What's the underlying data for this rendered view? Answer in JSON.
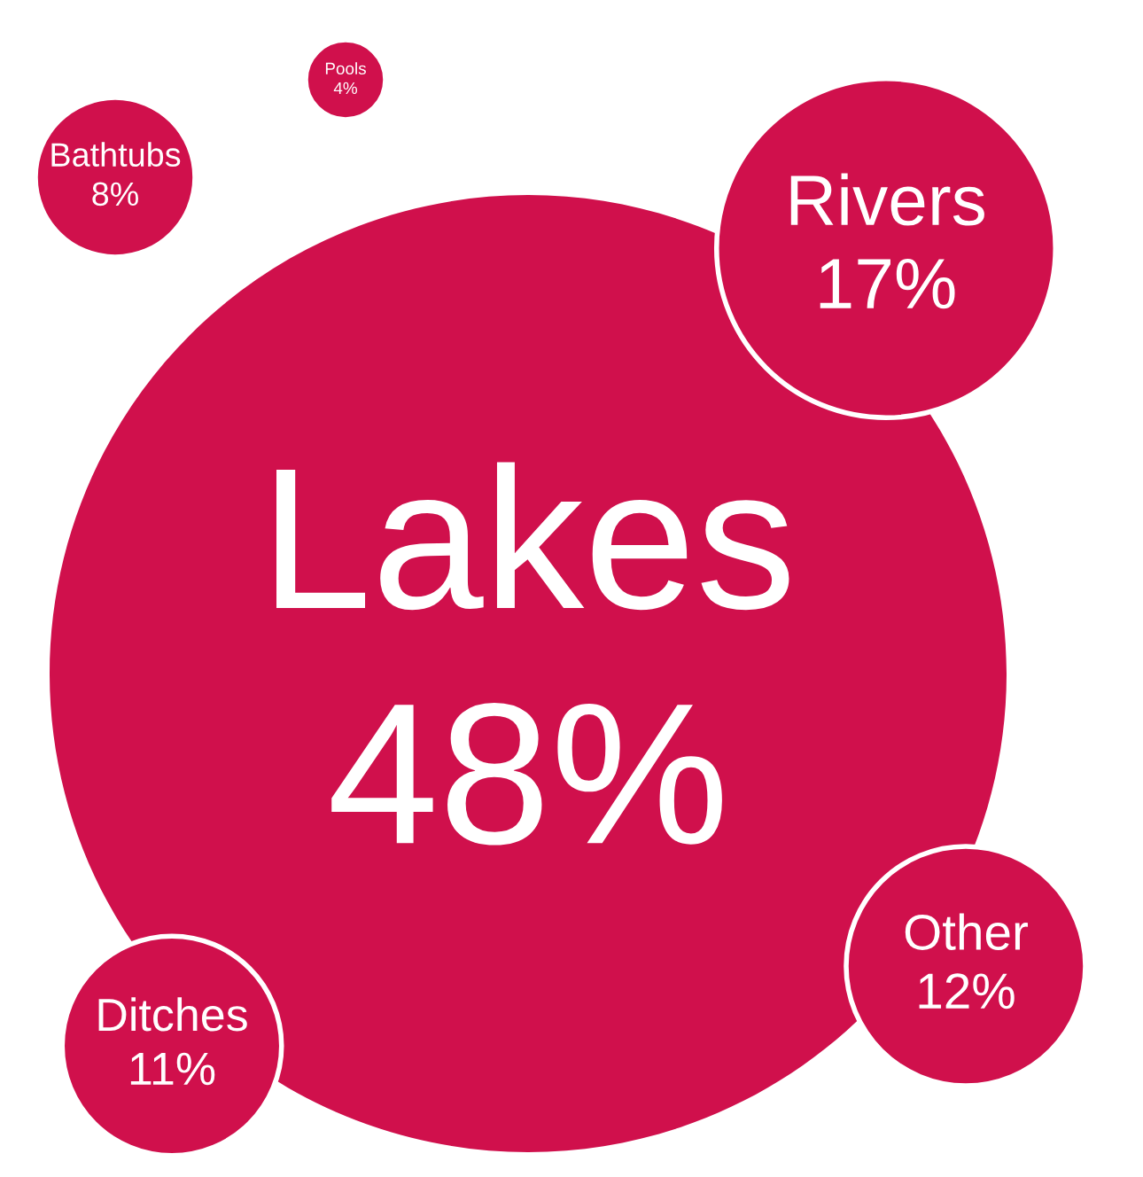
{
  "chart_data": {
    "type": "other",
    "categories": [
      "Lakes",
      "Rivers",
      "Other",
      "Ditches",
      "Bathtubs",
      "Pools"
    ],
    "values": [
      48,
      17,
      12,
      11,
      8,
      4
    ],
    "value_labels": [
      "48%",
      "17%",
      "12%",
      "11%",
      "8%",
      "4%"
    ],
    "color": "#d0104c"
  }
}
